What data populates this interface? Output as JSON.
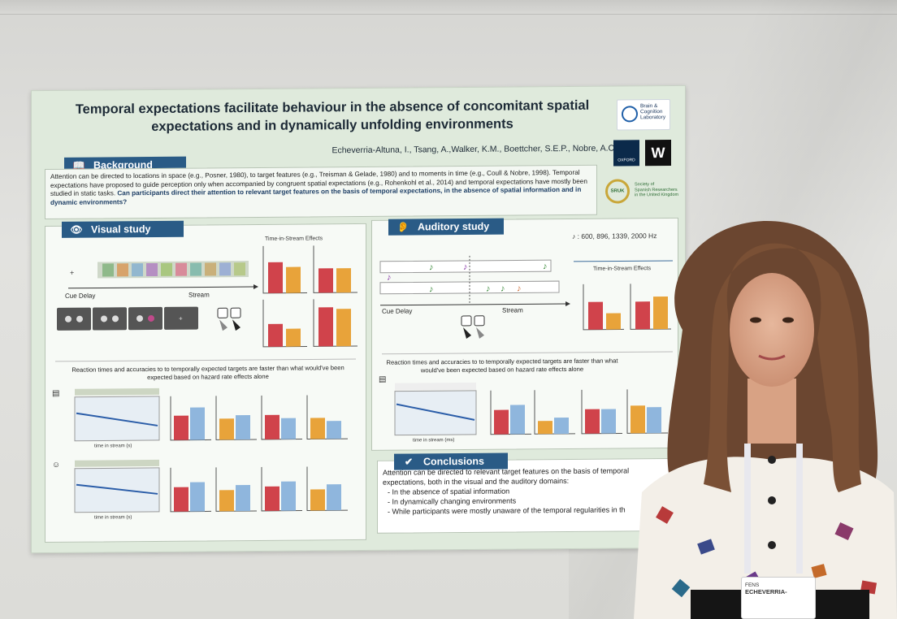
{
  "poster": {
    "title_line1": "Temporal expectations facilitate behaviour in the absence of concomitant spatial",
    "title_line2": "expectations and in dynamically unfolding environments",
    "authors": "Echeverria-Altuna, I., Tsang, A.,Walker, K.M., Boettcher, S.E.P., Nobre, A.C.",
    "logos": {
      "bcl_line1": "Brain &",
      "bcl_line2": "Cognition",
      "bcl_line3": "Laboratory",
      "oxford": "OXFORD",
      "wellcome": "W",
      "sruk_ring": "SRUK",
      "sruk_line1": "Society of",
      "sruk_line2": "Spanish Researchers",
      "sruk_line3": "in the United Kingdom"
    },
    "background": {
      "heading": "Background",
      "text": "Attention can be directed to locations in space (e.g., Posner, 1980), to target features (e.g., Treisman & Gelade, 1980) and to moments in time (e.g., Coull & Nobre, 1998). Temporal expectations have proposed to guide perception only when accompanied by congruent spatial expectations (e.g., Rohenkohl et al., 2014) and temporal expectations have mostly been studied in static tasks.",
      "question": "Can participants direct their attention to relevant target features on the basis of temporal expectations, in the absence of spatial information and in dynamic environments?"
    },
    "visual": {
      "heading": "Visual study",
      "cue_delay": "Cue Delay",
      "stream": "Stream",
      "tise_title": "Time-in-Stream Effects",
      "caption": "Reaction times and accuracies to to temporally expected targets are faster than what would've been expected based on hazard rate effects alone",
      "xaxis": "time in stream (s)"
    },
    "auditory": {
      "heading": "Auditory study",
      "freqs": ": 600, 896, 1339, 2000 Hz",
      "cue_delay": "Cue Delay",
      "stream": "Stream",
      "tise_title": "Time-in-Stream Effects",
      "caption": "Reaction times and accuracies to to temporally expected targets are faster than what would've been expected based on hazard rate effects alone",
      "xaxis": "time in stream (ms)"
    },
    "conclusions": {
      "heading": "Conclusions",
      "intro": "Attention can be directed to relevant target features on the basis of temporal expectations, both in the visual and the auditory domains:",
      "items": [
        "In the absence of spatial information",
        "In dynamically changing environments",
        "While participants were mostly unaware of the temporal regularities in th"
      ]
    }
  },
  "colors": {
    "poster_bg": "#dfeadc",
    "header_blue": "#2a5b86",
    "bar_red": "#d0434b",
    "bar_orange": "#e8a33a",
    "bar_blue": "#8fb6dd"
  },
  "badge": {
    "event": "FENS",
    "name": "ECHEVERRIA-"
  }
}
